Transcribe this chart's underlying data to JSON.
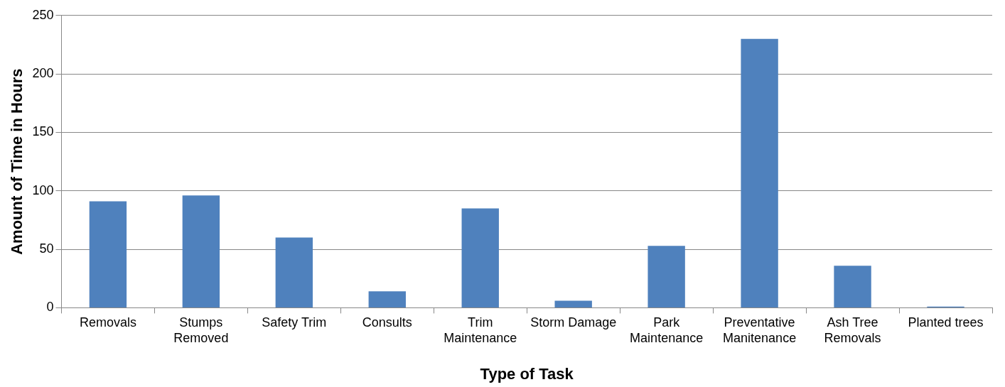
{
  "chart_data": {
    "type": "bar",
    "xlabel": "Type of Task",
    "ylabel": "Amount of Time in Hours",
    "categories": [
      "Removals",
      "Stumps Removed",
      "Safety Trim",
      "Consults",
      "Trim Maintenance",
      "Storm Damage",
      "Park Maintenance",
      "Preventative Manitenance",
      "Ash Tree Removals",
      "Planted trees"
    ],
    "values": [
      91,
      96,
      60,
      14,
      85,
      6,
      53,
      230,
      36,
      1
    ],
    "color": "#4f81bd",
    "ylim": [
      0,
      250
    ],
    "yticks": [
      0,
      50,
      100,
      150,
      200,
      250
    ],
    "grid": "y",
    "legend": false
  }
}
